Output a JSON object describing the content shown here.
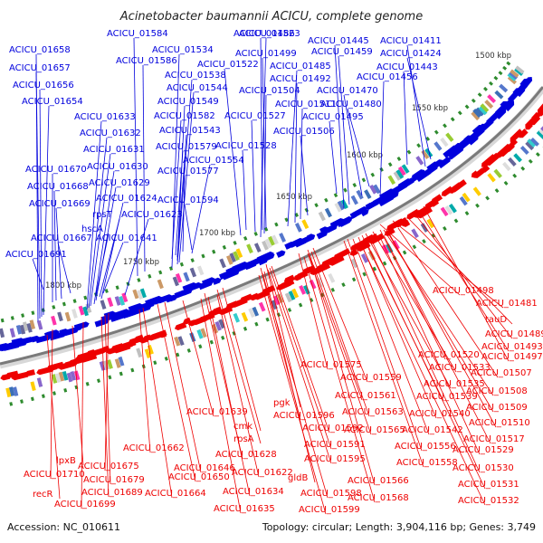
{
  "title": "Acinetobacter baumannii ACICU, complete genome",
  "accession": "Accession: NC_010611",
  "summary": "Topology: circular; Length: 3,904,116 bp; Genes: 3,749",
  "colors": {
    "forward": "#0000dd",
    "reverse": "#ee0000",
    "backbone": "#888888",
    "gc": "#2e8b2e"
  },
  "ticks": [
    "1500 kbp",
    "1550 kbp",
    "1600 kbp",
    "1650 kbp",
    "1700 kbp",
    "1750 kbp",
    "1800 kbp"
  ],
  "labels_forward": [
    "ACICU_01658",
    "ACICU_01657",
    "ACICU_01656",
    "ACICU_01654",
    "ACICU_01633",
    "ACICU_01632",
    "ACICU_01631",
    "ACICU_01630",
    "ACICU_01670",
    "ACICU_01629",
    "ACICU_01668",
    "ACICU_01624",
    "ACICU_01669",
    "rpsT",
    "ACICU_01623",
    "hscA",
    "ACICU_01641",
    "ACICU_01667",
    "ACICU_01691",
    "ACICU_01584",
    "ACICU_01586",
    "ACICU_01534",
    "ACICU_01538",
    "ACICU_01544",
    "ACICU_01549",
    "ACICU_01582",
    "ACICU_01543",
    "ACICU_01579",
    "ACICU_01554",
    "ACICU_01577",
    "ACICU_01594",
    "ACICU_01523",
    "ACICU_01522",
    "ACICU_01504",
    "ACICU_01527",
    "ACICU_01528",
    "ACICU_01486",
    "ACICU_01499",
    "ACICU_01485",
    "ACICU_01492",
    "ACICU_01511",
    "ACICU_01506",
    "ACICU_01445",
    "ACICU_01459",
    "ACICU_01456",
    "ACICU_01470",
    "ACICU_01495",
    "ACICU_01480",
    "ACICU_01411",
    "ACICU_01424",
    "ACICU_01443"
  ],
  "labels_reverse": [
    "ACICU_01498",
    "ACICU_01481",
    "tauD",
    "ACICU_01489",
    "ACICU_01493",
    "ACICU_01497",
    "ACICU_01520",
    "ACICU_01533",
    "ACICU_01507",
    "ACICU_01535",
    "ACICU_01508",
    "ACICU_01539",
    "ACICU_01509",
    "ACICU_01540",
    "ACICU_01510",
    "ACICU_01542",
    "ACICU_01517",
    "ACICU_01556",
    "ACICU_01529",
    "ACICU_01558",
    "ACICU_01530",
    "ACICU_01531",
    "ACICU_01532",
    "ACICU_01575",
    "ACICU_01559",
    "ACICU_01561",
    "ACICU_01563",
    "ACICU_01565",
    "ACICU_01566",
    "ACICU_01568",
    "pgk",
    "ACICU_01596",
    "ACICU_01592",
    "ACICU_01591",
    "ACICU_01595",
    "gldB",
    "ACICU_01598",
    "ACICU_01599",
    "cmk",
    "rpsA",
    "ACICU_01628",
    "ACICU_01639",
    "ACICU_01622",
    "ACICU_01646",
    "ACICU_01650",
    "ACICU_01634",
    "ACICU_01635",
    "ACICU_01662",
    "ACICU_01664",
    "ACICU_01675",
    "ACICU_01679",
    "ACICU_01689",
    "ACICU_01699",
    "lpxB",
    "ACICU_01710",
    "recR"
  ]
}
